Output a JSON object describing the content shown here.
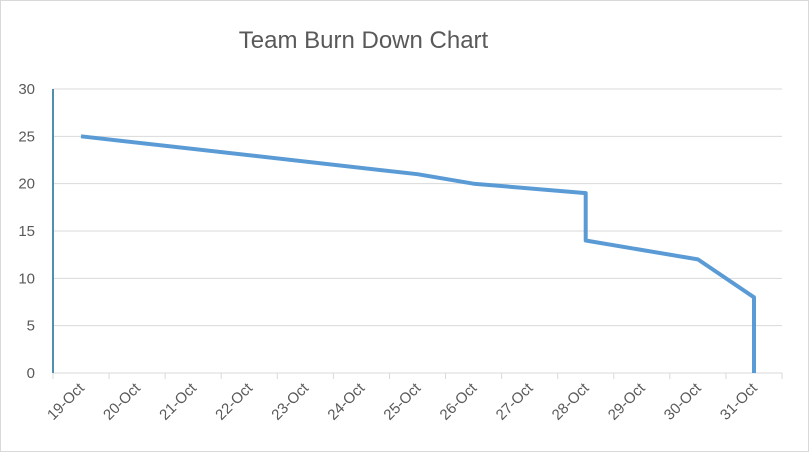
{
  "chart_data": {
    "type": "line",
    "title": "Team Burn Down Chart",
    "xlabel": "",
    "ylabel": "",
    "ylim": [
      0,
      30
    ],
    "yticks": [
      0,
      5,
      10,
      15,
      20,
      25,
      30
    ],
    "categories": [
      "19-Oct",
      "20-Oct",
      "21-Oct",
      "22-Oct",
      "23-Oct",
      "24-Oct",
      "25-Oct",
      "26-Oct",
      "27-Oct",
      "28-Oct",
      "29-Oct",
      "30-Oct",
      "31-Oct"
    ],
    "grid": true,
    "legend": "none",
    "line_color": "#5b9bd5",
    "series": [
      {
        "points": [
          {
            "x": "19-Oct",
            "y": 25
          },
          {
            "x": "25-Oct",
            "y": 21
          },
          {
            "x": "26-Oct",
            "y": 20
          },
          {
            "x": "28-Oct",
            "y": 19
          },
          {
            "x": "28-Oct",
            "y": 14
          },
          {
            "x": "30-Oct",
            "y": 12
          },
          {
            "x": "31-Oct",
            "y": 8
          },
          {
            "x": "31-Oct",
            "y": 0
          }
        ]
      }
    ]
  }
}
